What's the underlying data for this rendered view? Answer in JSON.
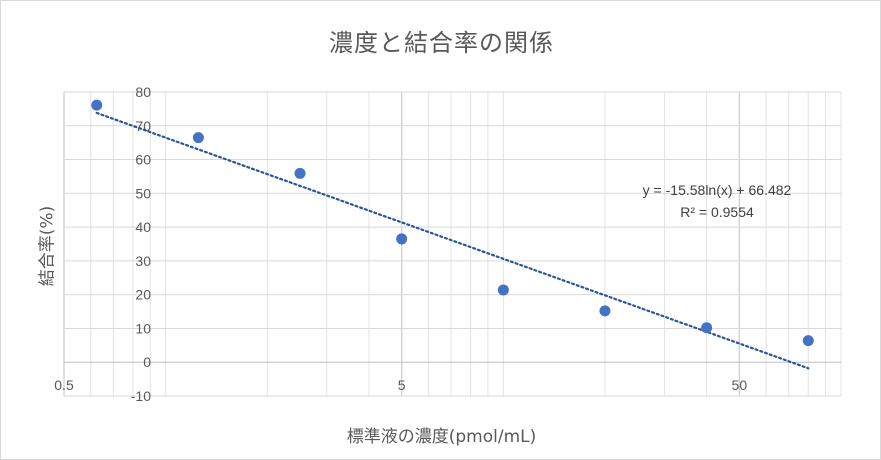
{
  "chart_data": {
    "type": "scatter",
    "title": "濃度と結合率の関係",
    "xlabel": "標準液の濃度(pmol/mL)",
    "ylabel": "結合率(%)",
    "x_scale": "log",
    "xlim": [
      0.5,
      100
    ],
    "ylim": [
      -10,
      80
    ],
    "x_ticks": [
      {
        "value": 0.5,
        "label": "0.5"
      },
      {
        "value": 5,
        "label": "5"
      },
      {
        "value": 50,
        "label": "50"
      }
    ],
    "y_ticks": [
      {
        "value": 80,
        "label": "80"
      },
      {
        "value": 70,
        "label": "70"
      },
      {
        "value": 60,
        "label": "60"
      },
      {
        "value": 50,
        "label": "50"
      },
      {
        "value": 40,
        "label": "40"
      },
      {
        "value": 30,
        "label": "30"
      },
      {
        "value": 20,
        "label": "20"
      },
      {
        "value": 10,
        "label": "10"
      },
      {
        "value": 0,
        "label": "0"
      },
      {
        "value": -10,
        "label": "-10"
      }
    ],
    "grid": true,
    "series": [
      {
        "color": "#4472c4",
        "points": [
          {
            "x": 0.625,
            "y": 76.1
          },
          {
            "x": 1.25,
            "y": 66.5
          },
          {
            "x": 2.5,
            "y": 55.9
          },
          {
            "x": 5,
            "y": 36.5
          },
          {
            "x": 10,
            "y": 21.4
          },
          {
            "x": 20,
            "y": 15.2
          },
          {
            "x": 40,
            "y": 10.2
          },
          {
            "x": 80,
            "y": 6.4
          }
        ]
      }
    ],
    "trendline": {
      "type": "logarithmic",
      "a": -15.58,
      "b": 66.482,
      "color": "#2e5597",
      "equation_label": "y = -15.58ln(x) + 66.482",
      "r2_label": "R² = 0.9554"
    }
  }
}
